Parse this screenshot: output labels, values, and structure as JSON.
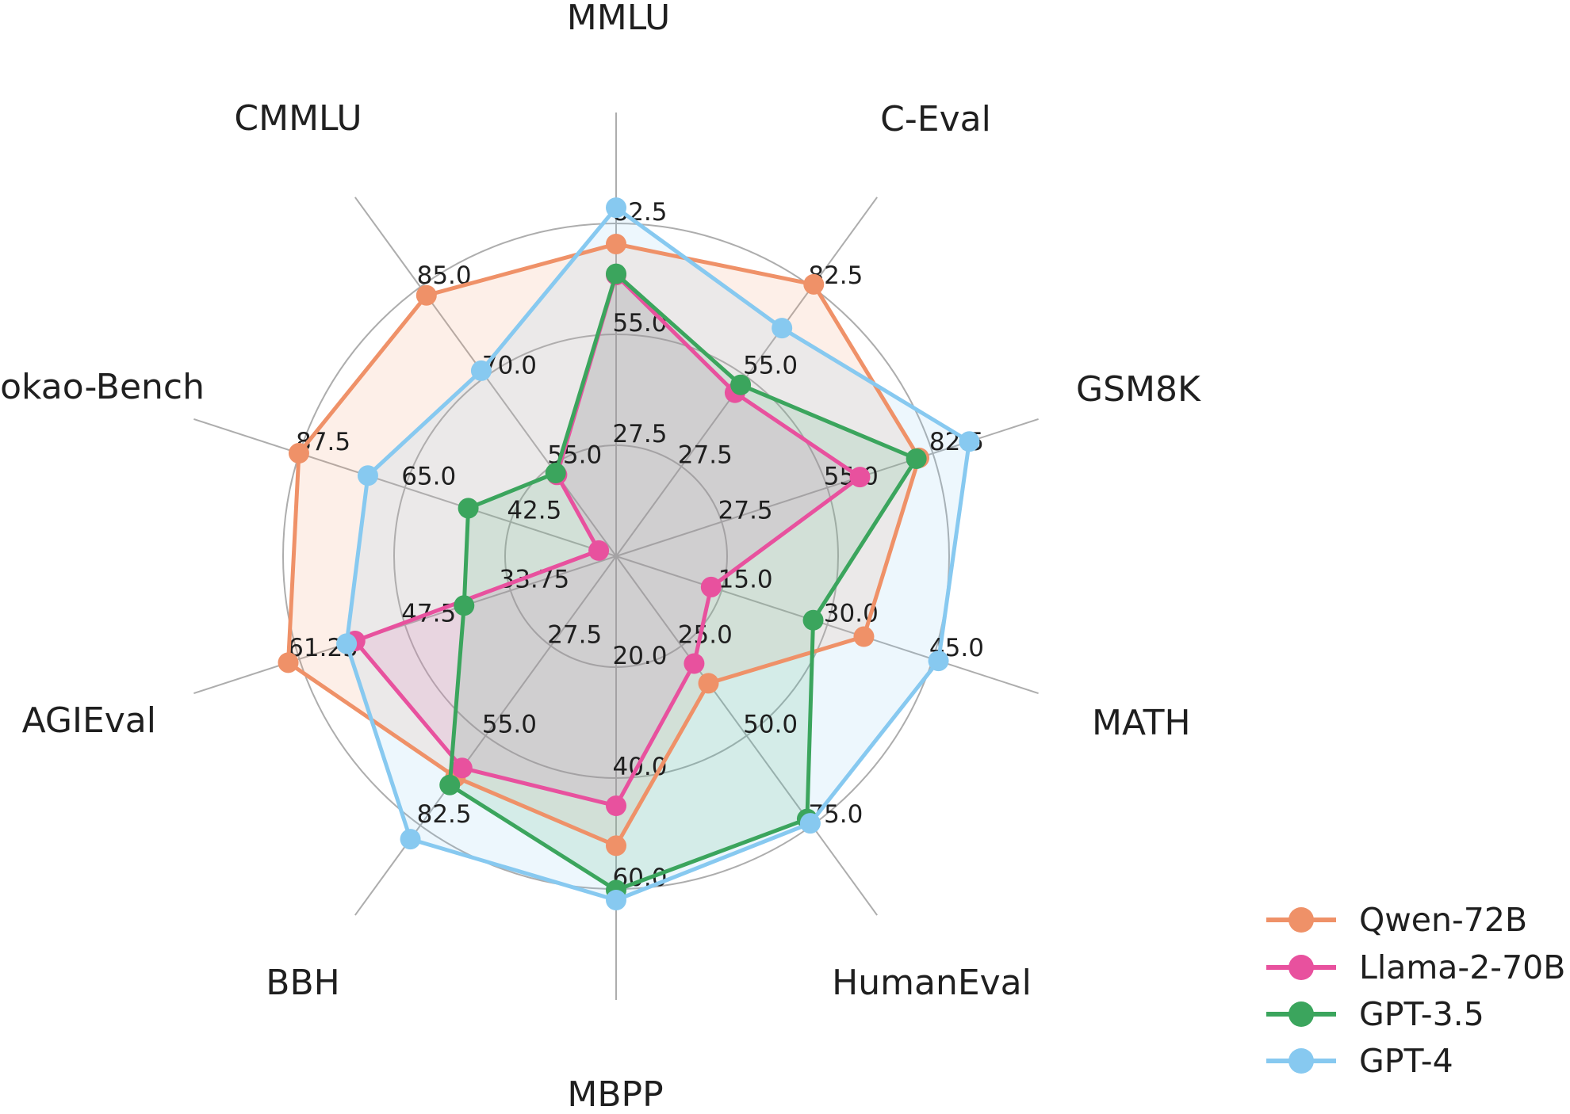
{
  "chart_data": {
    "type": "radar",
    "title": "",
    "categories": [
      "MMLU",
      "C-Eval",
      "GSM8K",
      "MATH",
      "HumanEval",
      "MBPP",
      "BBH",
      "AGIEval",
      "Gaokao-Bench",
      "CMMLU"
    ],
    "axes": [
      {
        "label": "MMLU",
        "ticks": [
          "27.5",
          "55.0",
          "82.5"
        ],
        "min": 0,
        "ring_step": 27.5
      },
      {
        "label": "C-Eval",
        "ticks": [
          "27.5",
          "55.0",
          "82.5"
        ],
        "min": 0,
        "ring_step": 27.5
      },
      {
        "label": "GSM8K",
        "ticks": [
          "27.5",
          "55.0",
          "82.5"
        ],
        "min": 0,
        "ring_step": 27.5
      },
      {
        "label": "MATH",
        "ticks": [
          "15.0",
          "30.0",
          "45.0"
        ],
        "min": 0,
        "ring_step": 15
      },
      {
        "label": "HumanEval",
        "ticks": [
          "25.0",
          "50.0",
          "75.0"
        ],
        "min": 0,
        "ring_step": 25
      },
      {
        "label": "MBPP",
        "ticks": [
          "20.0",
          "40.0",
          "60.0"
        ],
        "min": 0,
        "ring_step": 20
      },
      {
        "label": "BBH",
        "ticks": [
          "27.5",
          "55.0",
          "82.5"
        ],
        "min": 0,
        "ring_step": 27.5
      },
      {
        "label": "AGIEval",
        "ticks": [
          "33.75",
          "47.5",
          "61.25"
        ],
        "min": 20,
        "ring_step": 13.75
      },
      {
        "label": "Gaokao-Bench",
        "ticks": [
          "42.5",
          "65.0",
          "87.5"
        ],
        "min": 20,
        "ring_step": 22.5
      },
      {
        "label": "CMMLU",
        "ticks": [
          "55.0",
          "70.0",
          "85.0"
        ],
        "min": 40,
        "ring_step": 15
      }
    ],
    "series": [
      {
        "name": "Qwen-72B",
        "color": "#EF9168",
        "values": [
          77.4,
          83.3,
          78.9,
          35.2,
          35.4,
          52.2,
          67.7,
          62.7,
          87.6,
          83.6
        ]
      },
      {
        "name": "Llama-2-70B",
        "color": "#E8519E",
        "values": [
          69.7,
          50.1,
          63.5,
          13.5,
          29.9,
          45.0,
          64.9,
          54.0,
          23.7,
          53.6
        ]
      },
      {
        "name": "GPT-3.5",
        "color": "#3BA55D",
        "values": [
          70.0,
          52.5,
          78.2,
          28.0,
          73.2,
          60.2,
          70.1,
          39.8,
          51.5,
          53.9
        ]
      },
      {
        "name": "GPT-4",
        "color": "#87C9F0",
        "values": [
          86.4,
          69.9,
          92.0,
          45.8,
          74.4,
          62.0,
          86.7,
          55.1,
          72.9,
          71.0
        ]
      }
    ],
    "rings": 3,
    "grid_on": true,
    "grid_color": "#ADADAD",
    "fill_opacity": 0.15,
    "legend_position": "lower right",
    "legend_entries": [
      "Qwen-72B",
      "Llama-2-70B",
      "GPT-3.5",
      "GPT-4"
    ]
  }
}
